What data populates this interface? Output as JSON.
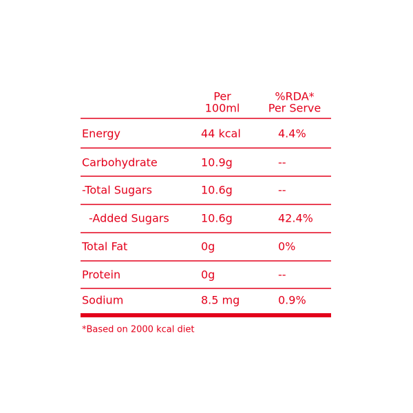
{
  "table": {
    "header": [
      [
        "Per",
        "100ml"
      ],
      [
        "%RDA*",
        "Per Serve"
      ]
    ],
    "rows": [
      [
        "Energy",
        "44 kcal",
        "4.4%"
      ],
      [
        "Carbohydrate",
        "10.9g",
        "--"
      ],
      [
        "-Total Sugars",
        "10.6g",
        "--"
      ],
      [
        "-Added Sugars",
        "10.6g",
        "42.4%"
      ],
      [
        "Total Fat",
        "0g",
        "0%"
      ],
      [
        "Protein",
        "0g",
        "--"
      ],
      [
        "Sodium",
        "8.5 mg",
        "0.9%"
      ]
    ],
    "footnote": "*Based on 2000 kcal diet"
  }
}
